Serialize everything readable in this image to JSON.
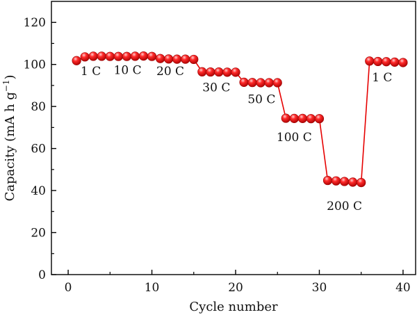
{
  "chart_data": {
    "type": "line",
    "xlabel": "Cycle number",
    "ylabel_main": "Capacity (mA h g",
    "ylabel_sup": "−1",
    "ylabel_close": ")",
    "xlim": [
      -2,
      41.5
    ],
    "ylim": [
      0,
      130
    ],
    "xticks": [
      0,
      10,
      20,
      30,
      40
    ],
    "yticks": [
      0,
      20,
      40,
      60,
      80,
      100,
      120
    ],
    "grid": false,
    "series": [
      {
        "x": [
          1,
          2,
          3,
          4,
          5,
          6,
          7,
          8,
          9,
          10,
          11,
          12,
          13,
          14,
          15,
          16,
          17,
          18,
          19,
          20,
          21,
          22,
          23,
          24,
          25,
          26,
          27,
          28,
          29,
          30,
          31,
          32,
          33,
          34,
          35,
          36,
          37,
          38,
          39,
          40
        ],
        "y": [
          101.8,
          103.6,
          103.9,
          103.9,
          103.8,
          103.8,
          103.8,
          103.9,
          104.0,
          103.8,
          102.8,
          102.6,
          102.5,
          102.5,
          102.4,
          96.5,
          96.4,
          96.4,
          96.3,
          96.3,
          91.5,
          91.4,
          91.3,
          91.3,
          91.3,
          74.4,
          74.3,
          74.3,
          74.2,
          74.2,
          44.8,
          44.6,
          44.3,
          44.0,
          43.8,
          101.6,
          101.4,
          101.3,
          101.1,
          100.9
        ],
        "color": "#e60000"
      }
    ],
    "annotations": [
      {
        "text": "1 C",
        "x": 2.7,
        "y": 95
      },
      {
        "text": "10 C",
        "x": 7.1,
        "y": 95.5
      },
      {
        "text": "20 C",
        "x": 12.2,
        "y": 95
      },
      {
        "text": "30 C",
        "x": 17.7,
        "y": 87.2
      },
      {
        "text": "50 C",
        "x": 23.1,
        "y": 81.5
      },
      {
        "text": "100 C",
        "x": 27.0,
        "y": 63.5
      },
      {
        "text": "200 C",
        "x": 33.0,
        "y": 30.8
      },
      {
        "text": "1 C",
        "x": 37.5,
        "y": 92
      }
    ]
  }
}
